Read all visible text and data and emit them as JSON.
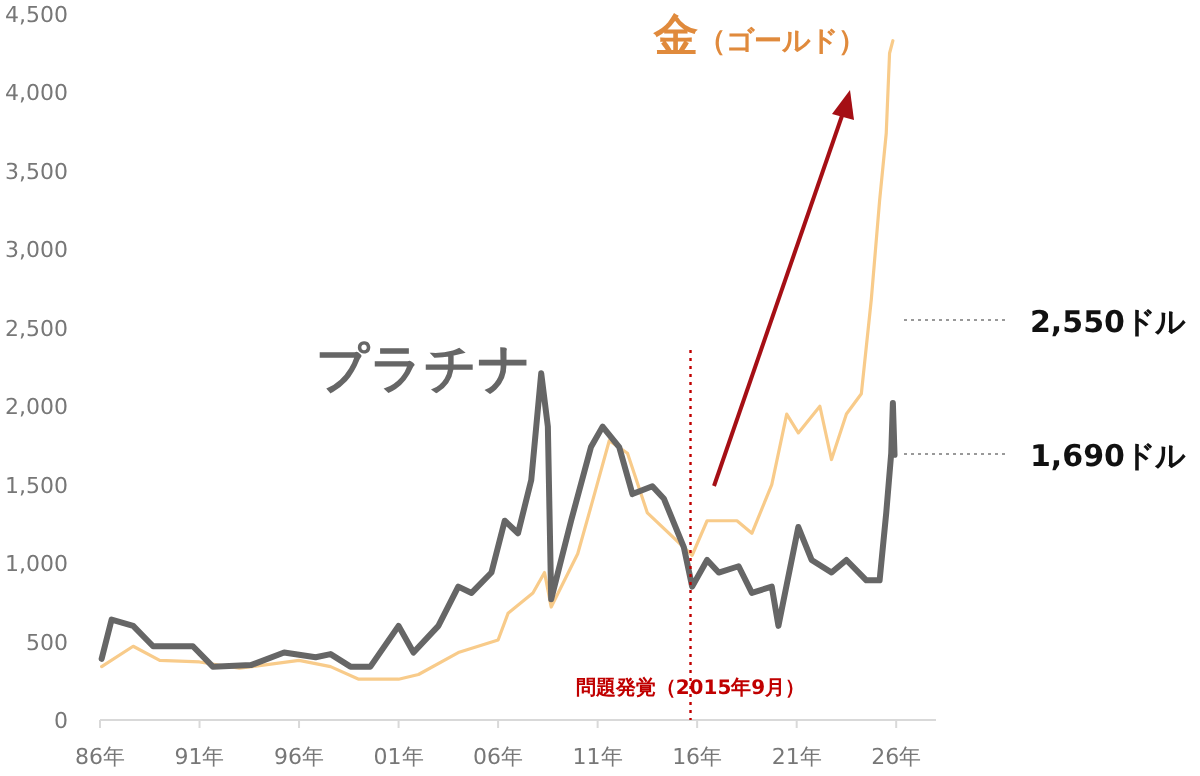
{
  "chart_data": {
    "type": "line",
    "xlim": [
      "1986",
      "2028"
    ],
    "ylim": [
      0,
      4500
    ],
    "xticks": [
      {
        "value": "1986",
        "label": "86年"
      },
      {
        "value": "1991",
        "label": "91年"
      },
      {
        "value": "1996",
        "label": "96年"
      },
      {
        "value": "2001",
        "label": "01年"
      },
      {
        "value": "2006",
        "label": "06年"
      },
      {
        "value": "2011",
        "label": "11年"
      },
      {
        "value": "2016",
        "label": "16年"
      },
      {
        "value": "2021",
        "label": "21年"
      },
      {
        "value": "2026",
        "label": "26年"
      }
    ],
    "yticks": [
      {
        "value": 0,
        "label": "0"
      },
      {
        "value": 500,
        "label": "500"
      },
      {
        "value": 1000,
        "label": "1,000"
      },
      {
        "value": 1500,
        "label": "1,500"
      },
      {
        "value": 2000,
        "label": "2,000"
      },
      {
        "value": 2500,
        "label": "2,500"
      },
      {
        "value": 3000,
        "label": "3,000"
      },
      {
        "value": 3500,
        "label": "3,500"
      },
      {
        "value": 4000,
        "label": "4,000"
      },
      {
        "value": 4500,
        "label": "4,500"
      }
    ],
    "grid": false,
    "marker": "none",
    "line_style": "solid",
    "series": [
      {
        "name": "金（ゴールド）",
        "color": "#f8cb8a",
        "x": [
          "1986-02",
          "1987-09",
          "1989-01",
          "1991-01",
          "1993-01",
          "1996-01",
          "1997-08",
          "1999-01",
          "2001-01",
          "2002-01",
          "2004-01",
          "2006-01",
          "2006-07",
          "2007-10",
          "2008-05",
          "2008-09",
          "2010-01",
          "2010-09",
          "2011-08",
          "2012-07",
          "2013-07",
          "2015-10",
          "2016-07",
          "2018-01",
          "2018-10",
          "2019-10",
          "2020-07",
          "2021-02",
          "2022-03",
          "2022-10",
          "2023-07",
          "2024-04",
          "2024-10",
          "2025-03",
          "2025-07",
          "2025-09",
          "2025-11"
        ],
        "values": [
          340,
          470,
          380,
          370,
          330,
          380,
          340,
          260,
          260,
          290,
          430,
          510,
          680,
          810,
          940,
          720,
          1060,
          1360,
          1780,
          1700,
          1320,
          1050,
          1270,
          1270,
          1190,
          1500,
          1950,
          1830,
          2000,
          1660,
          1950,
          2080,
          2680,
          3310,
          3740,
          4250,
          4330
        ]
      },
      {
        "name": "プラチナ",
        "color": "#666666",
        "x": [
          "1986-02",
          "1986-08",
          "1987-09",
          "1988-09",
          "1990-09",
          "1991-09",
          "1993-08",
          "1995-04",
          "1996-11",
          "1997-08",
          "1998-08",
          "1999-08",
          "2001-01",
          "2001-10",
          "2003-01",
          "2004-01",
          "2004-09",
          "2005-09",
          "2006-05",
          "2007-01",
          "2007-09",
          "2008-03",
          "2008-07",
          "2008-09",
          "2009-09",
          "2010-09",
          "2011-04",
          "2012-02",
          "2012-10",
          "2013-10",
          "2014-05",
          "2015-05",
          "2015-10",
          "2016-07",
          "2017-02",
          "2018-02",
          "2018-10",
          "2019-10",
          "2020-02",
          "2021-02",
          "2021-10",
          "2022-10",
          "2023-07",
          "2024-07",
          "2025-03",
          "2025-07",
          "2025-10",
          "2025-11",
          "2025-12"
        ],
        "values": [
          390,
          640,
          600,
          470,
          470,
          340,
          350,
          430,
          400,
          420,
          340,
          340,
          600,
          430,
          600,
          850,
          810,
          940,
          1270,
          1190,
          1530,
          2210,
          1870,
          770,
          1270,
          1740,
          1870,
          1740,
          1440,
          1490,
          1410,
          1100,
          850,
          1020,
          940,
          980,
          810,
          850,
          600,
          1230,
          1020,
          940,
          1020,
          890,
          890,
          1320,
          1700,
          2020,
          1690
        ]
      }
    ],
    "ref_lines": [
      {
        "axis": "x",
        "value": "2015-09",
        "label": "問題発覚（2015年9月）",
        "color": "#c00000",
        "line_style": "dotted"
      }
    ],
    "annotations": [
      "2,550ドル",
      "1,690ドル"
    ]
  }
}
